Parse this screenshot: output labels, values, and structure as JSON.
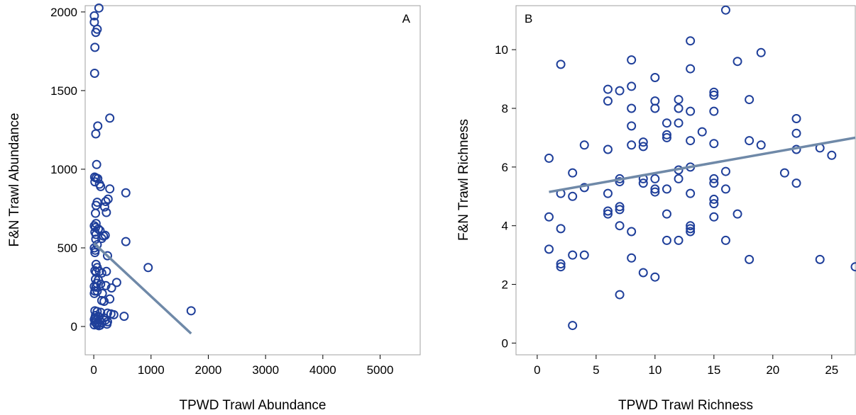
{
  "chart_data": [
    {
      "type": "scatter",
      "panel_label": "A",
      "xlabel": "TPWD Trawl Abundance",
      "ylabel": "F&N Trawl Abundance",
      "xlim": [
        -150,
        5700
      ],
      "ylim": [
        -180,
        2040
      ],
      "xticks": [
        0,
        1000,
        2000,
        3000,
        4000,
        5000
      ],
      "yticks": [
        0,
        500,
        1000,
        1500,
        2000
      ],
      "marker_color": "#1f3f9a",
      "fit_color": "#6f89a8",
      "fit_line": {
        "x": [
          0,
          1700
        ],
        "y": [
          530,
          -45
        ]
      },
      "points": [
        [
          90,
          2025
        ],
        [
          10,
          1975
        ],
        [
          10,
          1935
        ],
        [
          60,
          1890
        ],
        [
          35,
          1870
        ],
        [
          20,
          1775
        ],
        [
          15,
          1610
        ],
        [
          280,
          1325
        ],
        [
          70,
          1275
        ],
        [
          35,
          1225
        ],
        [
          50,
          1030
        ],
        [
          15,
          950
        ],
        [
          40,
          945
        ],
        [
          70,
          940
        ],
        [
          20,
          920
        ],
        [
          100,
          905
        ],
        [
          120,
          890
        ],
        [
          280,
          875
        ],
        [
          560,
          850
        ],
        [
          250,
          810
        ],
        [
          210,
          795
        ],
        [
          60,
          790
        ],
        [
          40,
          770
        ],
        [
          190,
          760
        ],
        [
          30,
          720
        ],
        [
          220,
          725
        ],
        [
          40,
          655
        ],
        [
          10,
          640
        ],
        [
          30,
          630
        ],
        [
          80,
          620
        ],
        [
          20,
          600
        ],
        [
          110,
          610
        ],
        [
          40,
          585
        ],
        [
          200,
          580
        ],
        [
          170,
          575
        ],
        [
          140,
          560
        ],
        [
          35,
          555
        ],
        [
          560,
          540
        ],
        [
          60,
          520
        ],
        [
          10,
          500
        ],
        [
          25,
          485
        ],
        [
          20,
          470
        ],
        [
          240,
          450
        ],
        [
          950,
          375
        ],
        [
          40,
          395
        ],
        [
          60,
          375
        ],
        [
          20,
          355
        ],
        [
          40,
          345
        ],
        [
          100,
          350
        ],
        [
          220,
          350
        ],
        [
          140,
          340
        ],
        [
          400,
          280
        ],
        [
          30,
          300
        ],
        [
          80,
          295
        ],
        [
          50,
          275
        ],
        [
          120,
          270
        ],
        [
          10,
          255
        ],
        [
          40,
          250
        ],
        [
          210,
          260
        ],
        [
          310,
          245
        ],
        [
          20,
          225
        ],
        [
          10,
          210
        ],
        [
          60,
          225
        ],
        [
          150,
          210
        ],
        [
          280,
          175
        ],
        [
          140,
          165
        ],
        [
          180,
          160
        ],
        [
          20,
          100
        ],
        [
          60,
          95
        ],
        [
          120,
          90
        ],
        [
          240,
          85
        ],
        [
          300,
          80
        ],
        [
          1700,
          100
        ],
        [
          30,
          70
        ],
        [
          80,
          65
        ],
        [
          350,
          75
        ],
        [
          10,
          45
        ],
        [
          40,
          40
        ],
        [
          100,
          40
        ],
        [
          200,
          40
        ],
        [
          530,
          65
        ],
        [
          30,
          25
        ],
        [
          60,
          20
        ],
        [
          140,
          25
        ],
        [
          230,
          15
        ],
        [
          10,
          10
        ],
        [
          60,
          10
        ],
        [
          110,
          8
        ],
        [
          20,
          55
        ],
        [
          180,
          55
        ],
        [
          240,
          30
        ],
        [
          90,
          5
        ]
      ]
    },
    {
      "type": "scatter",
      "panel_label": "B",
      "xlabel": "TPWD Trawl Richness",
      "ylabel": "F&N Trawl Richness",
      "xlim": [
        -1.8,
        27
      ],
      "ylim": [
        -0.4,
        11.5
      ],
      "xticks": [
        0,
        5,
        10,
        15,
        20,
        25
      ],
      "yticks": [
        0,
        2,
        4,
        6,
        8,
        10
      ],
      "marker_color": "#1f3f9a",
      "fit_color": "#6f89a8",
      "fit_line": {
        "x": [
          1,
          27
        ],
        "y": [
          5.15,
          7.0
        ]
      },
      "points": [
        [
          1,
          6.3
        ],
        [
          1,
          4.3
        ],
        [
          1,
          3.2
        ],
        [
          2,
          9.5
        ],
        [
          2,
          5.1
        ],
        [
          2,
          3.9
        ],
        [
          2,
          2.7
        ],
        [
          2,
          2.6
        ],
        [
          3,
          5.8
        ],
        [
          3,
          5.0
        ],
        [
          3,
          3.0
        ],
        [
          3,
          0.6
        ],
        [
          4,
          6.75
        ],
        [
          4,
          5.3
        ],
        [
          4,
          3.0
        ],
        [
          6,
          8.65
        ],
        [
          6,
          8.25
        ],
        [
          6,
          6.6
        ],
        [
          6,
          5.1
        ],
        [
          6,
          4.5
        ],
        [
          6,
          4.4
        ],
        [
          7,
          8.6
        ],
        [
          7,
          5.6
        ],
        [
          7,
          5.5
        ],
        [
          7,
          4.65
        ],
        [
          7,
          4.55
        ],
        [
          7,
          4.0
        ],
        [
          7,
          1.65
        ],
        [
          8,
          9.65
        ],
        [
          8,
          8.75
        ],
        [
          8,
          8.0
        ],
        [
          8,
          7.4
        ],
        [
          8,
          6.75
        ],
        [
          8,
          3.8
        ],
        [
          8,
          2.9
        ],
        [
          9,
          6.85
        ],
        [
          9,
          6.7
        ],
        [
          9,
          5.6
        ],
        [
          9,
          5.45
        ],
        [
          9,
          2.4
        ],
        [
          10,
          9.05
        ],
        [
          10,
          8.25
        ],
        [
          10,
          8.0
        ],
        [
          10,
          5.6
        ],
        [
          10,
          5.25
        ],
        [
          10,
          5.15
        ],
        [
          10,
          2.25
        ],
        [
          11,
          7.5
        ],
        [
          11,
          7.1
        ],
        [
          11,
          7.0
        ],
        [
          11,
          5.25
        ],
        [
          11,
          4.4
        ],
        [
          11,
          3.5
        ],
        [
          12,
          8.3
        ],
        [
          12,
          8.0
        ],
        [
          12,
          7.5
        ],
        [
          12,
          5.9
        ],
        [
          12,
          5.6
        ],
        [
          12,
          3.5
        ],
        [
          13,
          10.3
        ],
        [
          13,
          9.35
        ],
        [
          13,
          7.9
        ],
        [
          13,
          6.9
        ],
        [
          13,
          6.0
        ],
        [
          13,
          5.1
        ],
        [
          13,
          4.0
        ],
        [
          13,
          3.9
        ],
        [
          13,
          3.8
        ],
        [
          14,
          7.2
        ],
        [
          15,
          8.55
        ],
        [
          15,
          8.45
        ],
        [
          15,
          7.9
        ],
        [
          15,
          6.8
        ],
        [
          15,
          5.6
        ],
        [
          15,
          5.45
        ],
        [
          15,
          4.9
        ],
        [
          15,
          4.75
        ],
        [
          15,
          4.3
        ],
        [
          16,
          11.35
        ],
        [
          16,
          5.85
        ],
        [
          16,
          5.25
        ],
        [
          16,
          3.5
        ],
        [
          17,
          9.6
        ],
        [
          17,
          4.4
        ],
        [
          18,
          8.3
        ],
        [
          18,
          6.9
        ],
        [
          18,
          2.85
        ],
        [
          19,
          9.9
        ],
        [
          19,
          6.75
        ],
        [
          21,
          5.8
        ],
        [
          22,
          7.65
        ],
        [
          22,
          7.15
        ],
        [
          22,
          6.6
        ],
        [
          22,
          5.45
        ],
        [
          24,
          6.65
        ],
        [
          24,
          2.85
        ],
        [
          25,
          6.4
        ],
        [
          27,
          2.6
        ]
      ]
    }
  ]
}
